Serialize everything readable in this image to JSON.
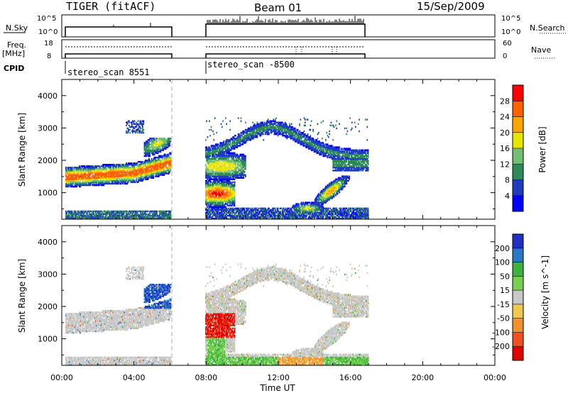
{
  "header": {
    "title": "TIGER (fitACF)",
    "beam": "Beam 01",
    "date": "15/Sep/2009"
  },
  "strips": {
    "nsky_label": "N.Sky",
    "nsky_ticks": [
      "10^5",
      "10^0"
    ],
    "nsearch_label": "N.Search",
    "freq_label_1": "Freq.",
    "freq_label_2": "[MHz]",
    "freq_ticks": [
      "18",
      "8"
    ],
    "nave_label": "Nave",
    "nave_ticks": [
      "60",
      "0"
    ],
    "cpid_label": "CPID"
  },
  "cpid_segments": [
    {
      "name": "stereo_scan 8551",
      "start": 0.0,
      "end": 6.0
    },
    {
      "name": "stereo_scan -8500",
      "start": 8.0,
      "end": 17.0
    }
  ],
  "chart_data": [
    {
      "type": "heatmap",
      "quantity": "power",
      "xlabel": "Time UT",
      "ylabel": "Slant Range [km]",
      "xlim": [
        0,
        24
      ],
      "ylim": [
        180,
        4500
      ],
      "xticks": [
        0,
        4,
        8,
        12,
        16,
        20,
        24
      ],
      "xtick_labels": [
        "00:00",
        "04:00",
        "08:00",
        "12:00",
        "16:00",
        "20:00",
        "00:00"
      ],
      "yticks": [
        1000,
        2000,
        3000,
        4000
      ],
      "ytick_labels": [
        "1000",
        "2000",
        "3000",
        "4000"
      ],
      "colorbar": {
        "label": "Power [dB]",
        "ticks": [
          "4",
          "8",
          "12",
          "16",
          "20",
          "24",
          "28"
        ],
        "colors": [
          "#0000ff",
          "#1e3cbe",
          "#2e8b57",
          "#72c072",
          "#e6e600",
          "#ffa500",
          "#ff6000",
          "#ff0000"
        ],
        "min": 0,
        "max": 32
      },
      "data_gaps_hours": [
        [
          6.05,
          7.95
        ],
        [
          17.0,
          24.0
        ]
      ]
    },
    {
      "type": "heatmap",
      "quantity": "velocity",
      "xlabel": "Time UT",
      "ylabel": "Slant Range [km]",
      "xlim": [
        0,
        24
      ],
      "ylim": [
        180,
        4500
      ],
      "xticks": [
        0,
        4,
        8,
        12,
        16,
        20,
        24
      ],
      "xtick_labels": [
        "00:00",
        "04:00",
        "08:00",
        "12:00",
        "16:00",
        "20:00",
        "00:00"
      ],
      "yticks": [
        1000,
        2000,
        3000,
        4000
      ],
      "ytick_labels": [
        "1000",
        "2000",
        "3000",
        "4000"
      ],
      "colorbar": {
        "label": "Velocity [m s^-1]",
        "ticks": [
          "200",
          "100",
          "50",
          "15",
          "-15",
          "-50",
          "-100",
          "-200"
        ],
        "colors": [
          "#2030c0",
          "#2878c8",
          "#3cb43c",
          "#78d050",
          "#c8c8c8",
          "#f0c850",
          "#f09030",
          "#f05020",
          "#e00000"
        ]
      },
      "data_gaps_hours": [
        [
          6.05,
          7.95
        ],
        [
          17.0,
          24.0
        ]
      ]
    }
  ],
  "time_label": "Time UT"
}
